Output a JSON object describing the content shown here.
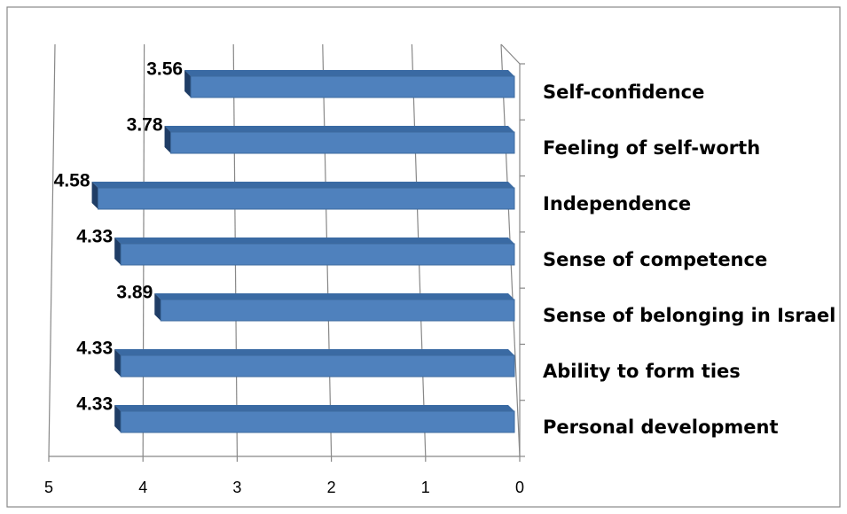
{
  "chart_data": {
    "type": "barh",
    "categories": [
      "Self-confidence",
      "Feeling of self-worth",
      "Independence",
      "Sense of competence",
      "Sense of belonging in Israel",
      "Ability to form ties",
      "Personal development"
    ],
    "values": [
      3.56,
      3.78,
      4.58,
      4.33,
      3.89,
      4.33,
      4.33
    ],
    "color": "#4f81bd",
    "xlim": [
      0,
      5
    ],
    "xticks": [
      0,
      1,
      2,
      3,
      4,
      5
    ],
    "x_reversed": true,
    "grid": true
  }
}
